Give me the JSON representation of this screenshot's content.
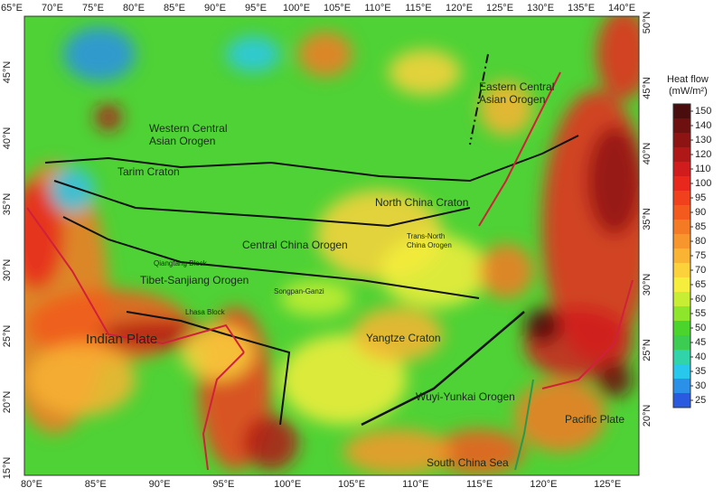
{
  "map": {
    "top_lon_labels": [
      "65°E",
      "70°E",
      "75°E",
      "80°E",
      "85°E",
      "90°E",
      "95°E",
      "100°E",
      "105°E",
      "110°E",
      "115°E",
      "120°E",
      "125°E",
      "130°E",
      "135°E",
      "140°E"
    ],
    "bottom_lon_labels": [
      "80°E",
      "85°E",
      "90°E",
      "95°E",
      "100°E",
      "105°E",
      "110°E",
      "115°E",
      "120°E",
      "125°E"
    ],
    "left_lat_labels": [
      "45°N",
      "40°N",
      "35°N",
      "30°N",
      "25°N",
      "20°N",
      "15°N"
    ],
    "right_lat_labels": [
      "50°N",
      "45°N",
      "40°N",
      "35°N",
      "30°N",
      "25°N",
      "20°N"
    ],
    "region_labels": [
      "Eastern Central Asian Orogen",
      "Western Central Asian Orogen",
      "Tarim Craton",
      "North China Craton",
      "Trans-North China Orogen",
      "Central China Orogen",
      "Qiangtang Block",
      "Tibet-Sanjiang Orogen",
      "Songpan-Ganzi",
      "Lhasa Block",
      "Indian Plate",
      "Yangtze Craton",
      "Wuyi-Yunkai Orogen",
      "Pacific Plate",
      "South China Sea"
    ]
  },
  "legend": {
    "title": "Heat flow",
    "unit": "(mW/m²)",
    "ticks": [
      150,
      140,
      130,
      120,
      110,
      100,
      95,
      90,
      85,
      80,
      75,
      70,
      65,
      60,
      55,
      50,
      45,
      40,
      35,
      30,
      25
    ],
    "colors": [
      "#4a0d0d",
      "#6e1010",
      "#8e1414",
      "#b01818",
      "#d01c1c",
      "#e8281c",
      "#f0401c",
      "#f25a1e",
      "#f47a24",
      "#f7962c",
      "#f9b434",
      "#fbd23c",
      "#f5ee3c",
      "#c8ee34",
      "#8ee62c",
      "#4ad42c",
      "#3ccc52",
      "#30d4a8",
      "#28c8ec",
      "#2a90e8",
      "#2a5ae0"
    ]
  }
}
